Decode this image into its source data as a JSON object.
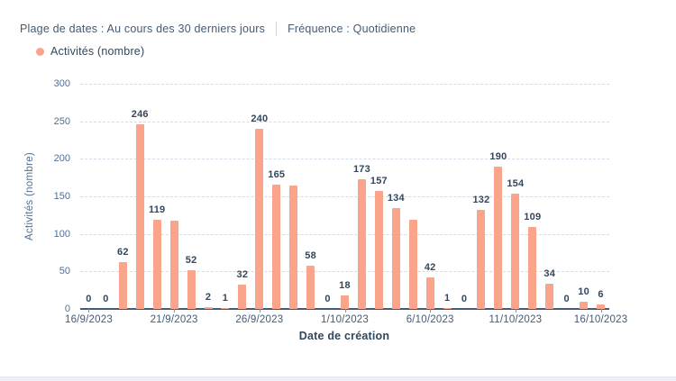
{
  "header": {
    "date_range_label": "Plage de dates : Au cours des 30 derniers jours",
    "frequency_label": "Fréquence : Quotidienne"
  },
  "legend": {
    "series_label": "Activités (nombre)"
  },
  "chart_data": {
    "type": "bar",
    "title": "",
    "xlabel": "Date de création",
    "ylabel": "Activités (nombre)",
    "ylim": [
      0,
      300
    ],
    "y_ticks": [
      0,
      50,
      100,
      150,
      200,
      250,
      300
    ],
    "grid": true,
    "legend_position": "top-left",
    "categories": [
      "16/9/2023",
      "17/9/2023",
      "18/9/2023",
      "19/9/2023",
      "20/9/2023",
      "21/9/2023",
      "22/9/2023",
      "23/9/2023",
      "24/9/2023",
      "25/9/2023",
      "26/9/2023",
      "27/9/2023",
      "28/9/2023",
      "29/9/2023",
      "30/9/2023",
      "1/10/2023",
      "2/10/2023",
      "3/10/2023",
      "4/10/2023",
      "5/10/2023",
      "6/10/2023",
      "7/10/2023",
      "8/10/2023",
      "9/10/2023",
      "10/10/2023",
      "11/10/2023",
      "12/10/2023",
      "13/10/2023",
      "14/10/2023",
      "15/10/2023",
      "16/10/2023"
    ],
    "values": [
      0,
      0,
      62,
      246,
      119,
      118,
      52,
      2,
      1,
      32,
      240,
      165,
      164,
      58,
      0,
      18,
      173,
      157,
      134,
      119,
      42,
      1,
      0,
      132,
      190,
      154,
      109,
      34,
      0,
      10,
      6
    ],
    "label_visible": [
      true,
      true,
      true,
      true,
      true,
      false,
      true,
      true,
      true,
      true,
      true,
      true,
      false,
      true,
      true,
      true,
      true,
      true,
      true,
      false,
      true,
      true,
      true,
      true,
      true,
      true,
      true,
      true,
      true,
      true,
      true
    ],
    "x_tick_indices": [
      0,
      5,
      10,
      15,
      20,
      25,
      30
    ],
    "x_tick_labels": [
      "16/9/2023",
      "21/9/2023",
      "26/9/2023",
      "1/10/2023",
      "6/10/2023",
      "11/10/2023",
      "16/10/2023"
    ]
  },
  "colors": {
    "bar": "#faa48c",
    "value_label": "#33475b",
    "axis_text": "#516f90",
    "grid_line": "#d3dce8",
    "axis_line": "#425b76"
  }
}
